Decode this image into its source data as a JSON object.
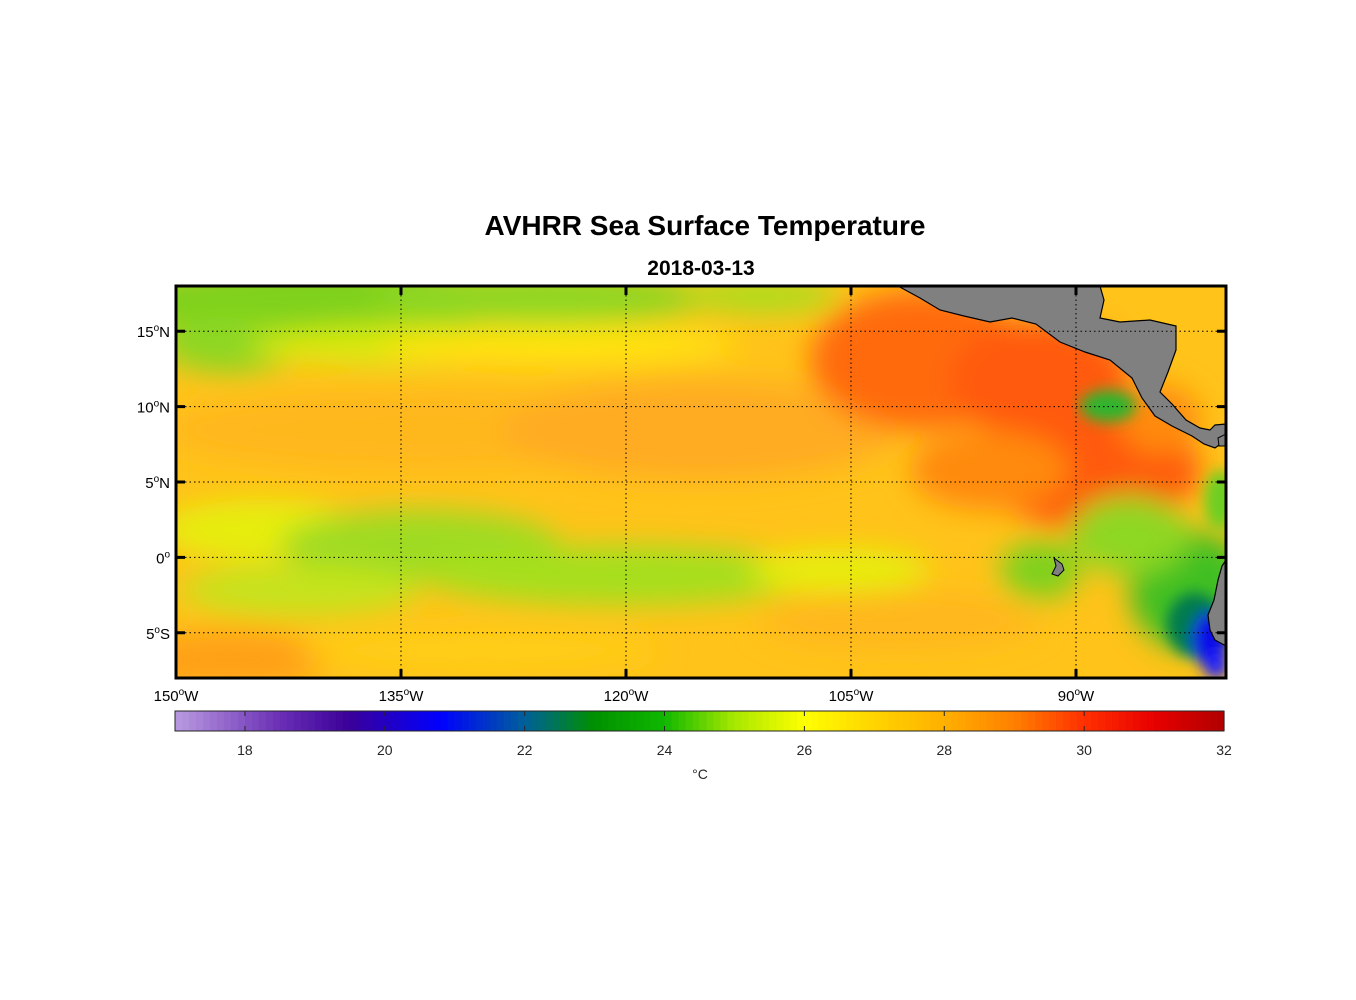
{
  "map": {
    "title": "AVHRR Sea Surface Temperature",
    "subtitle": "2018-03-13",
    "extent": {
      "lon": [
        -150,
        -80
      ],
      "lat": [
        -8,
        18
      ]
    },
    "lon_ticks": [
      {
        "value": -150,
        "deg": "150",
        "hemi": "W"
      },
      {
        "value": -135,
        "deg": "135",
        "hemi": "W"
      },
      {
        "value": -120,
        "deg": "120",
        "hemi": "W"
      },
      {
        "value": -105,
        "deg": "105",
        "hemi": "W"
      },
      {
        "value": -90,
        "deg": "90",
        "hemi": "W"
      }
    ],
    "lat_ticks": [
      {
        "value": 15,
        "deg": "15",
        "hemi": "N"
      },
      {
        "value": 10,
        "deg": "10",
        "hemi": "N"
      },
      {
        "value": 5,
        "deg": "5",
        "hemi": "N"
      },
      {
        "value": 0,
        "deg": "0",
        "hemi": ""
      },
      {
        "value": -5,
        "deg": "5",
        "hemi": "S"
      }
    ],
    "grid": true,
    "land_color": "#808080",
    "colors": {
      "cool": "#00ff00",
      "warm": "#ff0000",
      "cold": "#0000ff"
    }
  },
  "colorbar": {
    "min": 17,
    "max": 32,
    "ticks": [
      18,
      20,
      22,
      24,
      26,
      28,
      30,
      32
    ],
    "label": "°C",
    "stops": [
      {
        "v": 17,
        "c": "#b99be0"
      },
      {
        "v": 18.5,
        "c": "#6a2fb5"
      },
      {
        "v": 19.5,
        "c": "#3a0099"
      },
      {
        "v": 20.8,
        "c": "#0000ff"
      },
      {
        "v": 22,
        "c": "#00609a"
      },
      {
        "v": 23,
        "c": "#009000"
      },
      {
        "v": 24,
        "c": "#10b800"
      },
      {
        "v": 25,
        "c": "#a8e800"
      },
      {
        "v": 26,
        "c": "#ffff00"
      },
      {
        "v": 27,
        "c": "#ffd400"
      },
      {
        "v": 28,
        "c": "#ffb000"
      },
      {
        "v": 29,
        "c": "#ff8000"
      },
      {
        "v": 30,
        "c": "#ff3000"
      },
      {
        "v": 31,
        "c": "#e80000"
      },
      {
        "v": 32,
        "c": "#b00000"
      }
    ]
  }
}
